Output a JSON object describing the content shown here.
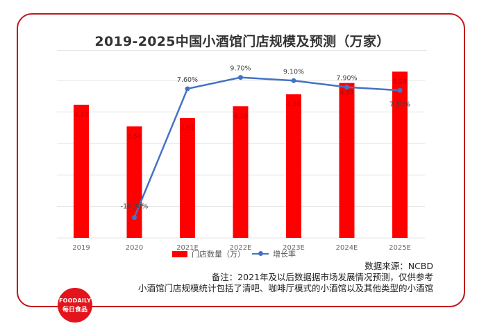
{
  "chart_data": {
    "type": "bar+line",
    "title": "2019-2025中国小酒馆门店规模及预测（万家）",
    "categories": [
      "2019",
      "2020",
      "2021E",
      "2022E",
      "2023E",
      "2024E",
      "2025E"
    ],
    "series": [
      {
        "name": "门店数量（万）",
        "type": "bar",
        "color": "#ff0000",
        "values": [
          4.23,
          3.54,
          3.81,
          4.18,
          4.56,
          4.92,
          5.28
        ],
        "labels": [
          "4.23",
          "3.54",
          "3.81",
          "4.18",
          "4.56",
          "4.92",
          "5.28"
        ]
      },
      {
        "name": "增长率",
        "type": "line",
        "color": "#4472c4",
        "values": [
          null,
          -16.3,
          7.6,
          9.7,
          9.1,
          7.9,
          7.3
        ],
        "labels": [
          "",
          "-16.30%",
          "7.60%",
          "9.70%",
          "9.10%",
          "7.90%",
          "7.30%"
        ]
      }
    ],
    "ylim_bar": [
      0,
      5
    ],
    "ylim_line_percent": [
      -20,
      12
    ],
    "grid": true,
    "legend": "bottom"
  },
  "notes": {
    "source": "数据来源：NCBD",
    "remark": "备注：2021年及以后数据据市场发展情况预测，仅供参考",
    "scope": "小酒馆门店规模统计包括了清吧、咖啡厅模式的小酒馆以及其他类型的小酒馆"
  },
  "logo": {
    "en": "FOODAILY",
    "cn": "每日食品"
  },
  "watermark": "FOODAILY 每日食品"
}
